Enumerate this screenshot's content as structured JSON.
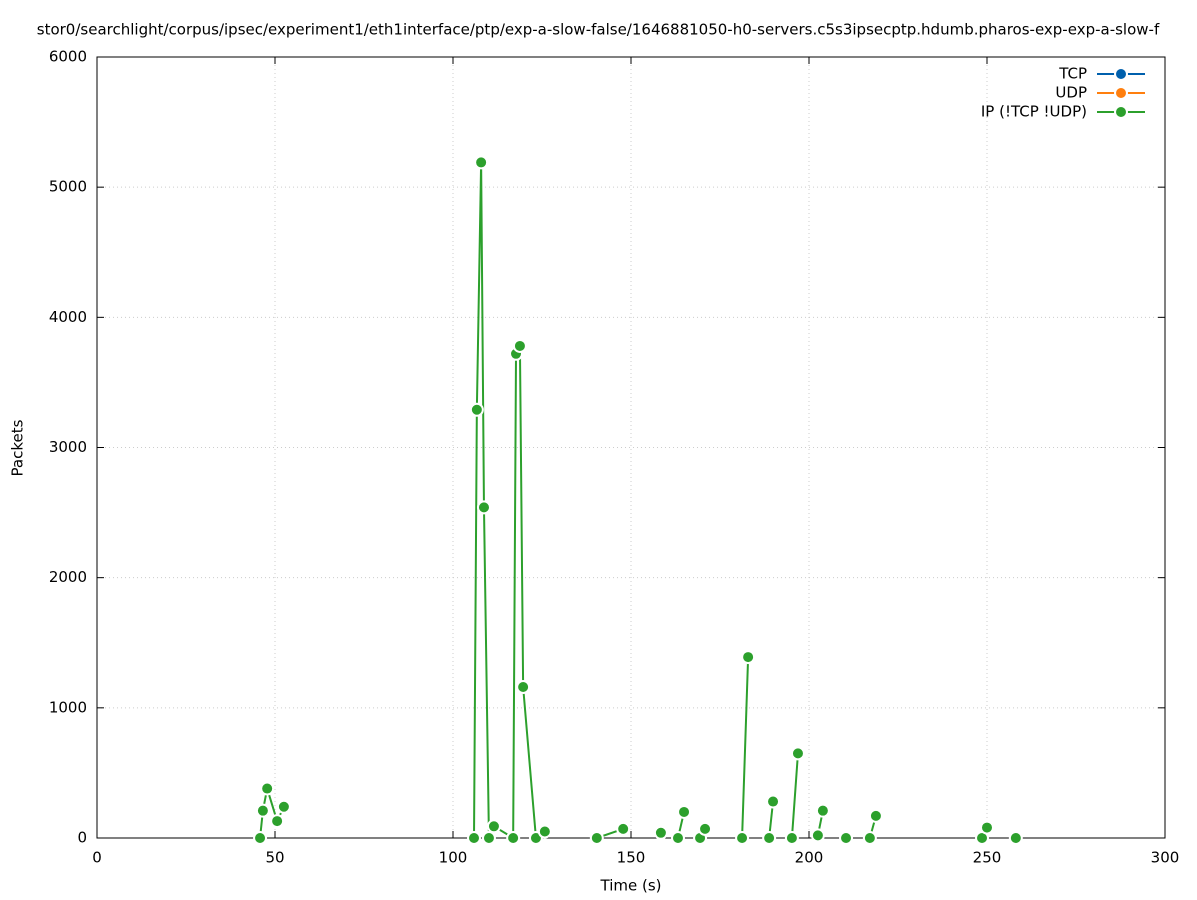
{
  "chart_data": {
    "type": "line",
    "title": "stor0/searchlight/corpus/ipsec/experiment1/eth1interface/ptp/exp-a-slow-false/1646881050-h0-servers.c5s3ipsecptp.hdumb.pharos-exp-exp-a-slow-f",
    "x_label": "Time (s)",
    "y_label": "Packets",
    "xlim": [
      0,
      300
    ],
    "xticks": [
      0,
      50,
      100,
      150,
      200,
      250,
      300
    ],
    "ylim": [
      0,
      6000
    ],
    "yticks": [
      0,
      1000,
      2000,
      3000,
      4000,
      5000,
      6000
    ],
    "grid": true,
    "legend": "top-right",
    "series": [
      {
        "name": "TCP",
        "color": "#0060ad",
        "x": [],
        "values": []
      },
      {
        "name": "UDP",
        "color": "#ff7f0e",
        "x": [],
        "values": []
      },
      {
        "name": "IP (!TCP  !UDP)",
        "color": "#2ca02c",
        "x": [
          45.8,
          46.6,
          47.8,
          50.6,
          52.5,
          null,
          105.9,
          106.7,
          107.9,
          108.7,
          110.1,
          111.5,
          116.9,
          117.7,
          118.8,
          119.7,
          123.3,
          125.8,
          null,
          140.4,
          147.8,
          null,
          158.4,
          null,
          163.2,
          164.9,
          null,
          169.4,
          170.8,
          null,
          181.2,
          182.9,
          null,
          188.8,
          189.9,
          null,
          195.2,
          196.9,
          null,
          202.5,
          203.9,
          null,
          210.4,
          null,
          217.1,
          218.8,
          null,
          248.6,
          250,
          null,
          258.1
        ],
        "values": [
          0,
          210,
          380,
          130,
          240,
          null,
          0,
          3290,
          5190,
          2540,
          0,
          90,
          0,
          3720,
          3780,
          1160,
          0,
          50,
          null,
          0,
          70,
          null,
          40,
          null,
          0,
          200,
          null,
          0,
          70,
          null,
          0,
          1390,
          null,
          0,
          280,
          null,
          0,
          650,
          null,
          20,
          210,
          null,
          0,
          null,
          0,
          170,
          null,
          0,
          80,
          null,
          0
        ]
      }
    ]
  }
}
